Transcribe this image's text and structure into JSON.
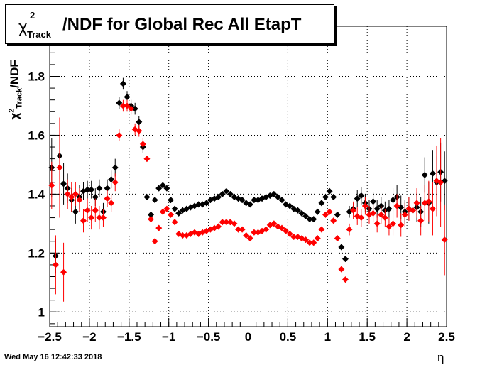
{
  "title": {
    "chi": "χ",
    "sup": "2",
    "sub": "Track",
    "main": "/NDF for Global Rec All EtapT"
  },
  "ylabel": {
    "chi": "χ",
    "sup": "2",
    "sub": "Track",
    "rest": "/NDF"
  },
  "xlabel": "η",
  "timestamp": "Wed May 16 12:42:33 2018",
  "colors": {
    "series_black": "#000000",
    "series_red": "#ff0000",
    "grid": "#000000"
  },
  "chart_data": {
    "type": "scatter",
    "xlim": [
      -2.5,
      2.5
    ],
    "ylim": [
      0.95,
      1.97
    ],
    "xticks": [
      -2.5,
      -2,
      -1.5,
      -1,
      -0.5,
      0,
      0.5,
      1,
      1.5,
      2,
      2.5
    ],
    "xtick_labels": [
      "−2.5",
      "−2",
      "−1.5",
      "−1",
      "−0.5",
      "0",
      "0.5",
      "1",
      "1.5",
      "2",
      "2.5"
    ],
    "yticks": [
      1,
      1.2,
      1.4,
      1.6,
      1.8
    ],
    "ytick_labels": [
      "1",
      "1.2",
      "1.4",
      "1.6",
      "1.8"
    ],
    "grid": true,
    "series": [
      {
        "color": "#000000",
        "points": [
          [
            -2.475,
            1.49,
            0.1
          ],
          [
            -2.425,
            1.19,
            0.06
          ],
          [
            -2.375,
            1.53,
            0.08
          ],
          [
            -2.325,
            1.435,
            0.07
          ],
          [
            -2.275,
            1.42,
            0.05
          ],
          [
            -2.225,
            1.38,
            0.04
          ],
          [
            -2.175,
            1.34,
            0.04
          ],
          [
            -2.125,
            1.39,
            0.04
          ],
          [
            -2.075,
            1.41,
            0.03
          ],
          [
            -2.025,
            1.415,
            0.03
          ],
          [
            -1.975,
            1.415,
            0.03
          ],
          [
            -1.925,
            1.39,
            0.03
          ],
          [
            -1.875,
            1.42,
            0.03
          ],
          [
            -1.825,
            1.34,
            0.03
          ],
          [
            -1.775,
            1.42,
            0.03
          ],
          [
            -1.725,
            1.45,
            0.03
          ],
          [
            -1.675,
            1.49,
            0.03
          ],
          [
            -1.625,
            1.71,
            0.02
          ],
          [
            -1.575,
            1.775,
            0.02
          ],
          [
            -1.525,
            1.73,
            0.02
          ],
          [
            -1.475,
            1.7,
            0.02
          ],
          [
            -1.425,
            1.69,
            0.02
          ],
          [
            -1.375,
            1.645,
            0.02
          ],
          [
            -1.325,
            1.56,
            0.02
          ],
          [
            -1.275,
            1.39,
            0.01
          ],
          [
            -1.225,
            1.33,
            0.01
          ],
          [
            -1.175,
            1.38,
            0.01
          ],
          [
            -1.125,
            1.42,
            0.01
          ],
          [
            -1.075,
            1.43,
            0.01
          ],
          [
            -1.025,
            1.42,
            0.01
          ],
          [
            -0.975,
            1.38,
            0.01
          ],
          [
            -0.925,
            1.35,
            0.01
          ],
          [
            -0.875,
            1.335,
            0.01
          ],
          [
            -0.825,
            1.345,
            0.01
          ],
          [
            -0.775,
            1.35,
            0.01
          ],
          [
            -0.725,
            1.355,
            0.01
          ],
          [
            -0.675,
            1.36,
            0.01
          ],
          [
            -0.625,
            1.365,
            0.01
          ],
          [
            -0.575,
            1.365,
            0.01
          ],
          [
            -0.525,
            1.37,
            0.01
          ],
          [
            -0.475,
            1.38,
            0.01
          ],
          [
            -0.425,
            1.385,
            0.01
          ],
          [
            -0.375,
            1.39,
            0.01
          ],
          [
            -0.325,
            1.4,
            0.01
          ],
          [
            -0.275,
            1.41,
            0.01
          ],
          [
            -0.225,
            1.4,
            0.01
          ],
          [
            -0.175,
            1.39,
            0.01
          ],
          [
            -0.125,
            1.385,
            0.01
          ],
          [
            -0.075,
            1.38,
            0.01
          ],
          [
            -0.025,
            1.37,
            0.01
          ],
          [
            0.025,
            1.365,
            0.01
          ],
          [
            0.075,
            1.38,
            0.01
          ],
          [
            0.125,
            1.38,
            0.01
          ],
          [
            0.175,
            1.385,
            0.01
          ],
          [
            0.225,
            1.39,
            0.01
          ],
          [
            0.275,
            1.395,
            0.01
          ],
          [
            0.325,
            1.4,
            0.01
          ],
          [
            0.375,
            1.39,
            0.01
          ],
          [
            0.425,
            1.38,
            0.01
          ],
          [
            0.475,
            1.365,
            0.01
          ],
          [
            0.525,
            1.36,
            0.01
          ],
          [
            0.575,
            1.35,
            0.01
          ],
          [
            0.625,
            1.345,
            0.01
          ],
          [
            0.675,
            1.335,
            0.01
          ],
          [
            0.725,
            1.325,
            0.01
          ],
          [
            0.775,
            1.315,
            0.01
          ],
          [
            0.825,
            1.315,
            0.01
          ],
          [
            0.875,
            1.34,
            0.01
          ],
          [
            0.925,
            1.37,
            0.01
          ],
          [
            0.975,
            1.39,
            0.01
          ],
          [
            1.025,
            1.41,
            0.01
          ],
          [
            1.075,
            1.39,
            0.01
          ],
          [
            1.125,
            1.33,
            0.01
          ],
          [
            1.175,
            1.22,
            0.01
          ],
          [
            1.225,
            1.18,
            0.01
          ],
          [
            1.275,
            1.34,
            0.02
          ],
          [
            1.325,
            1.35,
            0.02
          ],
          [
            1.375,
            1.385,
            0.03
          ],
          [
            1.425,
            1.395,
            0.03
          ],
          [
            1.475,
            1.37,
            0.03
          ],
          [
            1.525,
            1.35,
            0.03
          ],
          [
            1.575,
            1.375,
            0.03
          ],
          [
            1.625,
            1.35,
            0.03
          ],
          [
            1.675,
            1.36,
            0.03
          ],
          [
            1.725,
            1.345,
            0.03
          ],
          [
            1.775,
            1.35,
            0.03
          ],
          [
            1.825,
            1.38,
            0.04
          ],
          [
            1.875,
            1.39,
            0.04
          ],
          [
            1.925,
            1.355,
            0.04
          ],
          [
            1.975,
            1.34,
            0.04
          ],
          [
            2.025,
            1.35,
            0.04
          ],
          [
            2.075,
            1.345,
            0.04
          ],
          [
            2.125,
            1.355,
            0.05
          ],
          [
            2.175,
            1.34,
            0.05
          ],
          [
            2.225,
            1.465,
            0.06
          ],
          [
            2.275,
            1.37,
            0.07
          ],
          [
            2.325,
            1.47,
            0.08
          ],
          [
            2.375,
            1.44,
            0.09
          ],
          [
            2.425,
            1.475,
            0.1
          ],
          [
            2.475,
            1.445,
            0.1
          ]
        ]
      },
      {
        "color": "#ff0000",
        "points": [
          [
            -2.475,
            1.43,
            0.08
          ],
          [
            -2.425,
            1.16,
            0.1
          ],
          [
            -2.375,
            1.49,
            0.17
          ],
          [
            -2.325,
            1.135,
            0.1
          ],
          [
            -2.275,
            1.4,
            0.05
          ],
          [
            -2.225,
            1.39,
            0.05
          ],
          [
            -2.175,
            1.4,
            0.04
          ],
          [
            -2.125,
            1.38,
            0.04
          ],
          [
            -2.075,
            1.31,
            0.04
          ],
          [
            -2.025,
            1.345,
            0.04
          ],
          [
            -1.975,
            1.32,
            0.04
          ],
          [
            -1.925,
            1.345,
            0.04
          ],
          [
            -1.875,
            1.32,
            0.04
          ],
          [
            -1.825,
            1.32,
            0.03
          ],
          [
            -1.775,
            1.385,
            0.03
          ],
          [
            -1.725,
            1.37,
            0.03
          ],
          [
            -1.675,
            1.44,
            0.03
          ],
          [
            -1.625,
            1.6,
            0.02
          ],
          [
            -1.575,
            1.7,
            0.02
          ],
          [
            -1.525,
            1.7,
            0.02
          ],
          [
            -1.475,
            1.69,
            0.02
          ],
          [
            -1.425,
            1.62,
            0.02
          ],
          [
            -1.375,
            1.615,
            0.02
          ],
          [
            -1.325,
            1.57,
            0.02
          ],
          [
            -1.275,
            1.52,
            0.01
          ],
          [
            -1.225,
            1.315,
            0.01
          ],
          [
            -1.175,
            1.24,
            0.01
          ],
          [
            -1.125,
            1.285,
            0.01
          ],
          [
            -1.075,
            1.34,
            0.01
          ],
          [
            -1.025,
            1.35,
            0.01
          ],
          [
            -0.975,
            1.33,
            0.01
          ],
          [
            -0.925,
            1.305,
            0.01
          ],
          [
            -0.875,
            1.265,
            0.01
          ],
          [
            -0.825,
            1.26,
            0.01
          ],
          [
            -0.775,
            1.26,
            0.01
          ],
          [
            -0.725,
            1.265,
            0.01
          ],
          [
            -0.675,
            1.27,
            0.01
          ],
          [
            -0.625,
            1.265,
            0.01
          ],
          [
            -0.575,
            1.27,
            0.01
          ],
          [
            -0.525,
            1.275,
            0.01
          ],
          [
            -0.475,
            1.28,
            0.01
          ],
          [
            -0.425,
            1.285,
            0.01
          ],
          [
            -0.375,
            1.29,
            0.01
          ],
          [
            -0.325,
            1.305,
            0.01
          ],
          [
            -0.275,
            1.305,
            0.01
          ],
          [
            -0.225,
            1.305,
            0.01
          ],
          [
            -0.175,
            1.3,
            0.01
          ],
          [
            -0.125,
            1.28,
            0.01
          ],
          [
            -0.075,
            1.28,
            0.01
          ],
          [
            -0.025,
            1.26,
            0.01
          ],
          [
            0.025,
            1.25,
            0.01
          ],
          [
            0.075,
            1.27,
            0.01
          ],
          [
            0.125,
            1.27,
            0.01
          ],
          [
            0.175,
            1.275,
            0.01
          ],
          [
            0.225,
            1.28,
            0.01
          ],
          [
            0.275,
            1.295,
            0.01
          ],
          [
            0.325,
            1.3,
            0.01
          ],
          [
            0.375,
            1.29,
            0.01
          ],
          [
            0.425,
            1.285,
            0.01
          ],
          [
            0.475,
            1.275,
            0.01
          ],
          [
            0.525,
            1.265,
            0.01
          ],
          [
            0.575,
            1.255,
            0.01
          ],
          [
            0.625,
            1.255,
            0.01
          ],
          [
            0.675,
            1.25,
            0.01
          ],
          [
            0.725,
            1.245,
            0.01
          ],
          [
            0.775,
            1.235,
            0.01
          ],
          [
            0.825,
            1.235,
            0.01
          ],
          [
            0.875,
            1.25,
            0.01
          ],
          [
            0.925,
            1.28,
            0.01
          ],
          [
            0.975,
            1.33,
            0.01
          ],
          [
            1.025,
            1.34,
            0.01
          ],
          [
            1.075,
            1.31,
            0.01
          ],
          [
            1.125,
            1.25,
            0.01
          ],
          [
            1.175,
            1.145,
            0.01
          ],
          [
            1.225,
            1.11,
            0.01
          ],
          [
            1.275,
            1.28,
            0.02
          ],
          [
            1.325,
            1.345,
            0.03
          ],
          [
            1.375,
            1.325,
            0.03
          ],
          [
            1.425,
            1.32,
            0.03
          ],
          [
            1.475,
            1.36,
            0.03
          ],
          [
            1.525,
            1.33,
            0.03
          ],
          [
            1.575,
            1.335,
            0.03
          ],
          [
            1.625,
            1.3,
            0.03
          ],
          [
            1.675,
            1.33,
            0.03
          ],
          [
            1.725,
            1.32,
            0.03
          ],
          [
            1.775,
            1.29,
            0.03
          ],
          [
            1.825,
            1.3,
            0.04
          ],
          [
            1.875,
            1.36,
            0.04
          ],
          [
            1.925,
            1.295,
            0.04
          ],
          [
            1.975,
            1.33,
            0.04
          ],
          [
            2.025,
            1.35,
            0.04
          ],
          [
            2.075,
            1.345,
            0.05
          ],
          [
            2.125,
            1.37,
            0.05
          ],
          [
            2.175,
            1.31,
            0.05
          ],
          [
            2.225,
            1.37,
            0.06
          ],
          [
            2.275,
            1.375,
            0.07
          ],
          [
            2.325,
            1.35,
            0.09
          ],
          [
            2.375,
            1.445,
            0.12
          ],
          [
            2.425,
            1.44,
            0.15
          ],
          [
            2.475,
            1.245,
            0.12
          ]
        ]
      }
    ]
  }
}
